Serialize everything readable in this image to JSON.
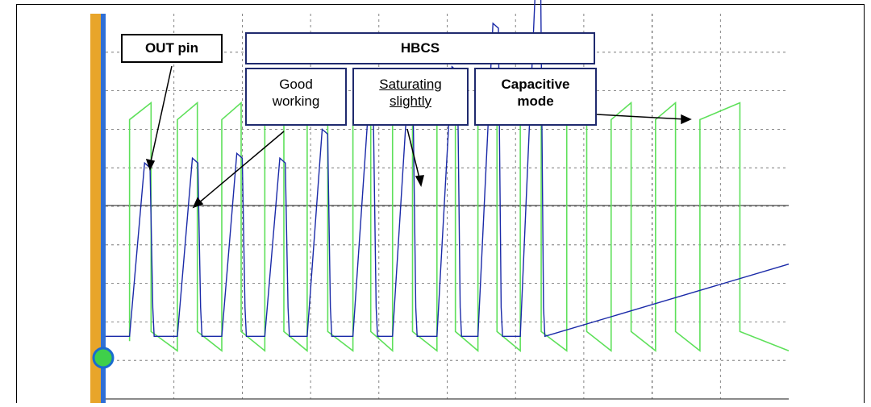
{
  "chart_data": {
    "type": "line",
    "title": "",
    "xlabel": "",
    "ylabel": "",
    "grid": true,
    "annotations": {
      "out_pin": "OUT pin",
      "hbcs": "HBCS",
      "good_working": [
        "Good",
        "working"
      ],
      "saturating_slightly": [
        "Saturating",
        "slightly"
      ],
      "capacitive_mode": [
        "Capacitive",
        "mode"
      ]
    },
    "series": [
      {
        "color": "#1a2aa8",
        "pulse_starts": [
          0.35,
          1.05,
          1.7,
          2.33,
          2.95,
          3.62,
          4.2,
          4.85,
          5.45,
          6.07
        ],
        "pulse_peaks": [
          4.9,
          5.0,
          5.1,
          5.0,
          5.6,
          5.9,
          6.3,
          6.9,
          7.8,
          8.5
        ],
        "trough_level": 1.3
      },
      {
        "color": "#5ee05a",
        "period_starts": [
          0.35,
          1.05,
          1.7,
          2.33,
          2.95,
          3.62,
          4.2,
          4.85,
          5.45,
          6.07,
          6.75,
          7.4,
          8.05,
          8.7
        ],
        "high_level": 6.0,
        "low_level": 1.2
      }
    ],
    "xlim": [
      0,
      10
    ],
    "ylim": [
      0,
      8
    ]
  },
  "colors": {
    "left_bar": "#e8a52a",
    "left_bar_edge": "#2f6fd6",
    "grid": "#666666",
    "marker": "#3fd04a"
  }
}
